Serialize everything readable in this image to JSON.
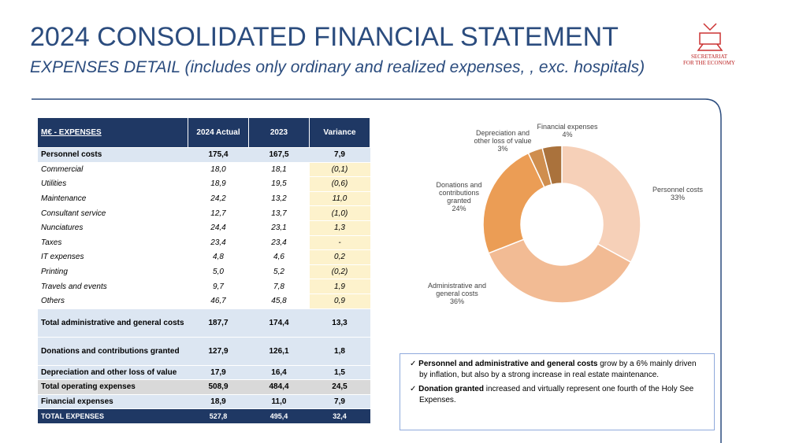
{
  "header": {
    "title": "2024 CONSOLIDATED FINANCIAL STATEMENT",
    "subtitle": "EXPENSES DETAIL (includes only ordinary and realized expenses, , exc. hospitals)",
    "logo_text": [
      "SECRETARIAT",
      "FOR THE ECONOMY"
    ]
  },
  "table": {
    "columns": [
      "M€ - EXPENSES",
      "2024 Actual",
      "2023",
      "Variance"
    ],
    "rows": [
      [
        "Personnel costs",
        "175,4",
        "167,5",
        "7,9"
      ],
      [
        "Commercial",
        "18,0",
        "18,1",
        "(0,1)"
      ],
      [
        "Utilities",
        "18,9",
        "19,5",
        "(0,6)"
      ],
      [
        "Maintenance",
        "24,2",
        "13,2",
        "11,0"
      ],
      [
        "Consultant service",
        "12,7",
        "13,7",
        "(1,0)"
      ],
      [
        "Nunciatures",
        "24,4",
        "23,1",
        "1,3"
      ],
      [
        "Taxes",
        "23,4",
        "23,4",
        "-"
      ],
      [
        "IT expenses",
        "4,8",
        "4,6",
        "0,2"
      ],
      [
        "Printing",
        "5,0",
        "5,2",
        "(0,2)"
      ],
      [
        "Travels and events",
        "9,7",
        "7,8",
        "1,9"
      ],
      [
        "Others",
        "46,7",
        "45,8",
        "0,9"
      ],
      [
        "Total administrative and general costs",
        "187,7",
        "174,4",
        "13,3"
      ],
      [
        "Donations and contributions granted",
        "127,9",
        "126,1",
        "1,8"
      ],
      [
        "Depreciation and other loss of value",
        "17,9",
        "16,4",
        "1,5"
      ],
      [
        "Total operating expenses",
        "508,9",
        "484,4",
        "24,5"
      ],
      [
        "Financial expenses",
        "18,9",
        "11,0",
        "7,9"
      ],
      [
        "TOTAL EXPENSES",
        "527,8",
        "495,4",
        "32,4"
      ]
    ]
  },
  "chart_data": {
    "type": "pie",
    "donut": true,
    "categories": [
      "Personnel costs",
      "Administrative and general costs",
      "Donations and contributions granted",
      "Depreciation and other loss of value",
      "Financial expenses"
    ],
    "values": [
      33,
      36,
      24,
      3,
      4
    ],
    "value_labels": [
      "33%",
      "36%",
      "24%",
      "3%",
      "4%"
    ],
    "colors": [
      "#f6d0b8",
      "#f2bb94",
      "#eb9d55",
      "#cf8e4e",
      "#aa723c"
    ]
  },
  "notes": [
    {
      "bold": "Personnel and administrative and general costs",
      "text": " grow by a 6% mainly driven by inflation, but also by a strong increase in real estate maintenance."
    },
    {
      "bold": "Donation granted",
      "text": " increased  and virtually represent one fourth of the Holy See Expenses."
    }
  ]
}
